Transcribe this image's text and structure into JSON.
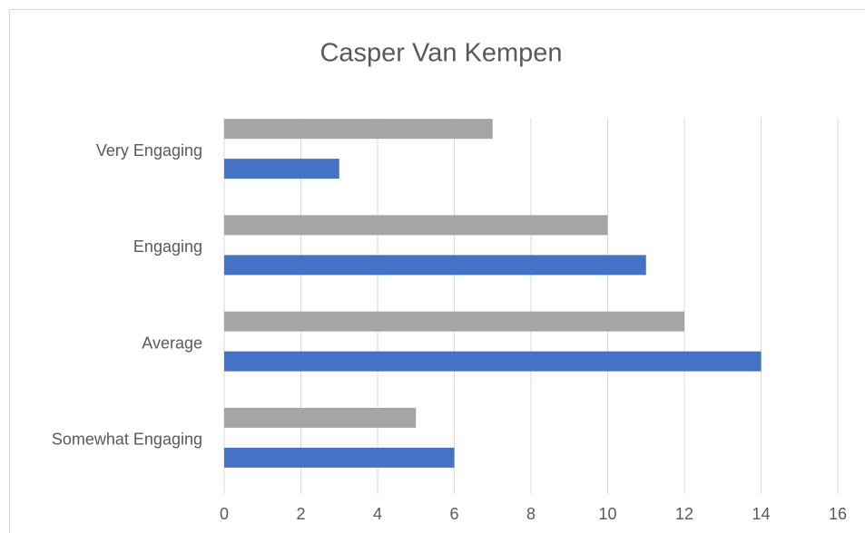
{
  "chart_data": {
    "type": "hbar",
    "title": "Casper Van Kempen",
    "categories": [
      "Very Engaging",
      "Engaging",
      "Average",
      "Somewhat Engaging"
    ],
    "series": [
      {
        "color": "#a5a5a5",
        "values": [
          7,
          10,
          12,
          5
        ]
      },
      {
        "color": "#4472c4",
        "values": [
          3,
          11,
          14,
          6
        ]
      }
    ],
    "xlim": [
      0,
      16
    ],
    "xticks": [
      0,
      2,
      4,
      6,
      8,
      10,
      12,
      14,
      16
    ],
    "grid": true
  }
}
